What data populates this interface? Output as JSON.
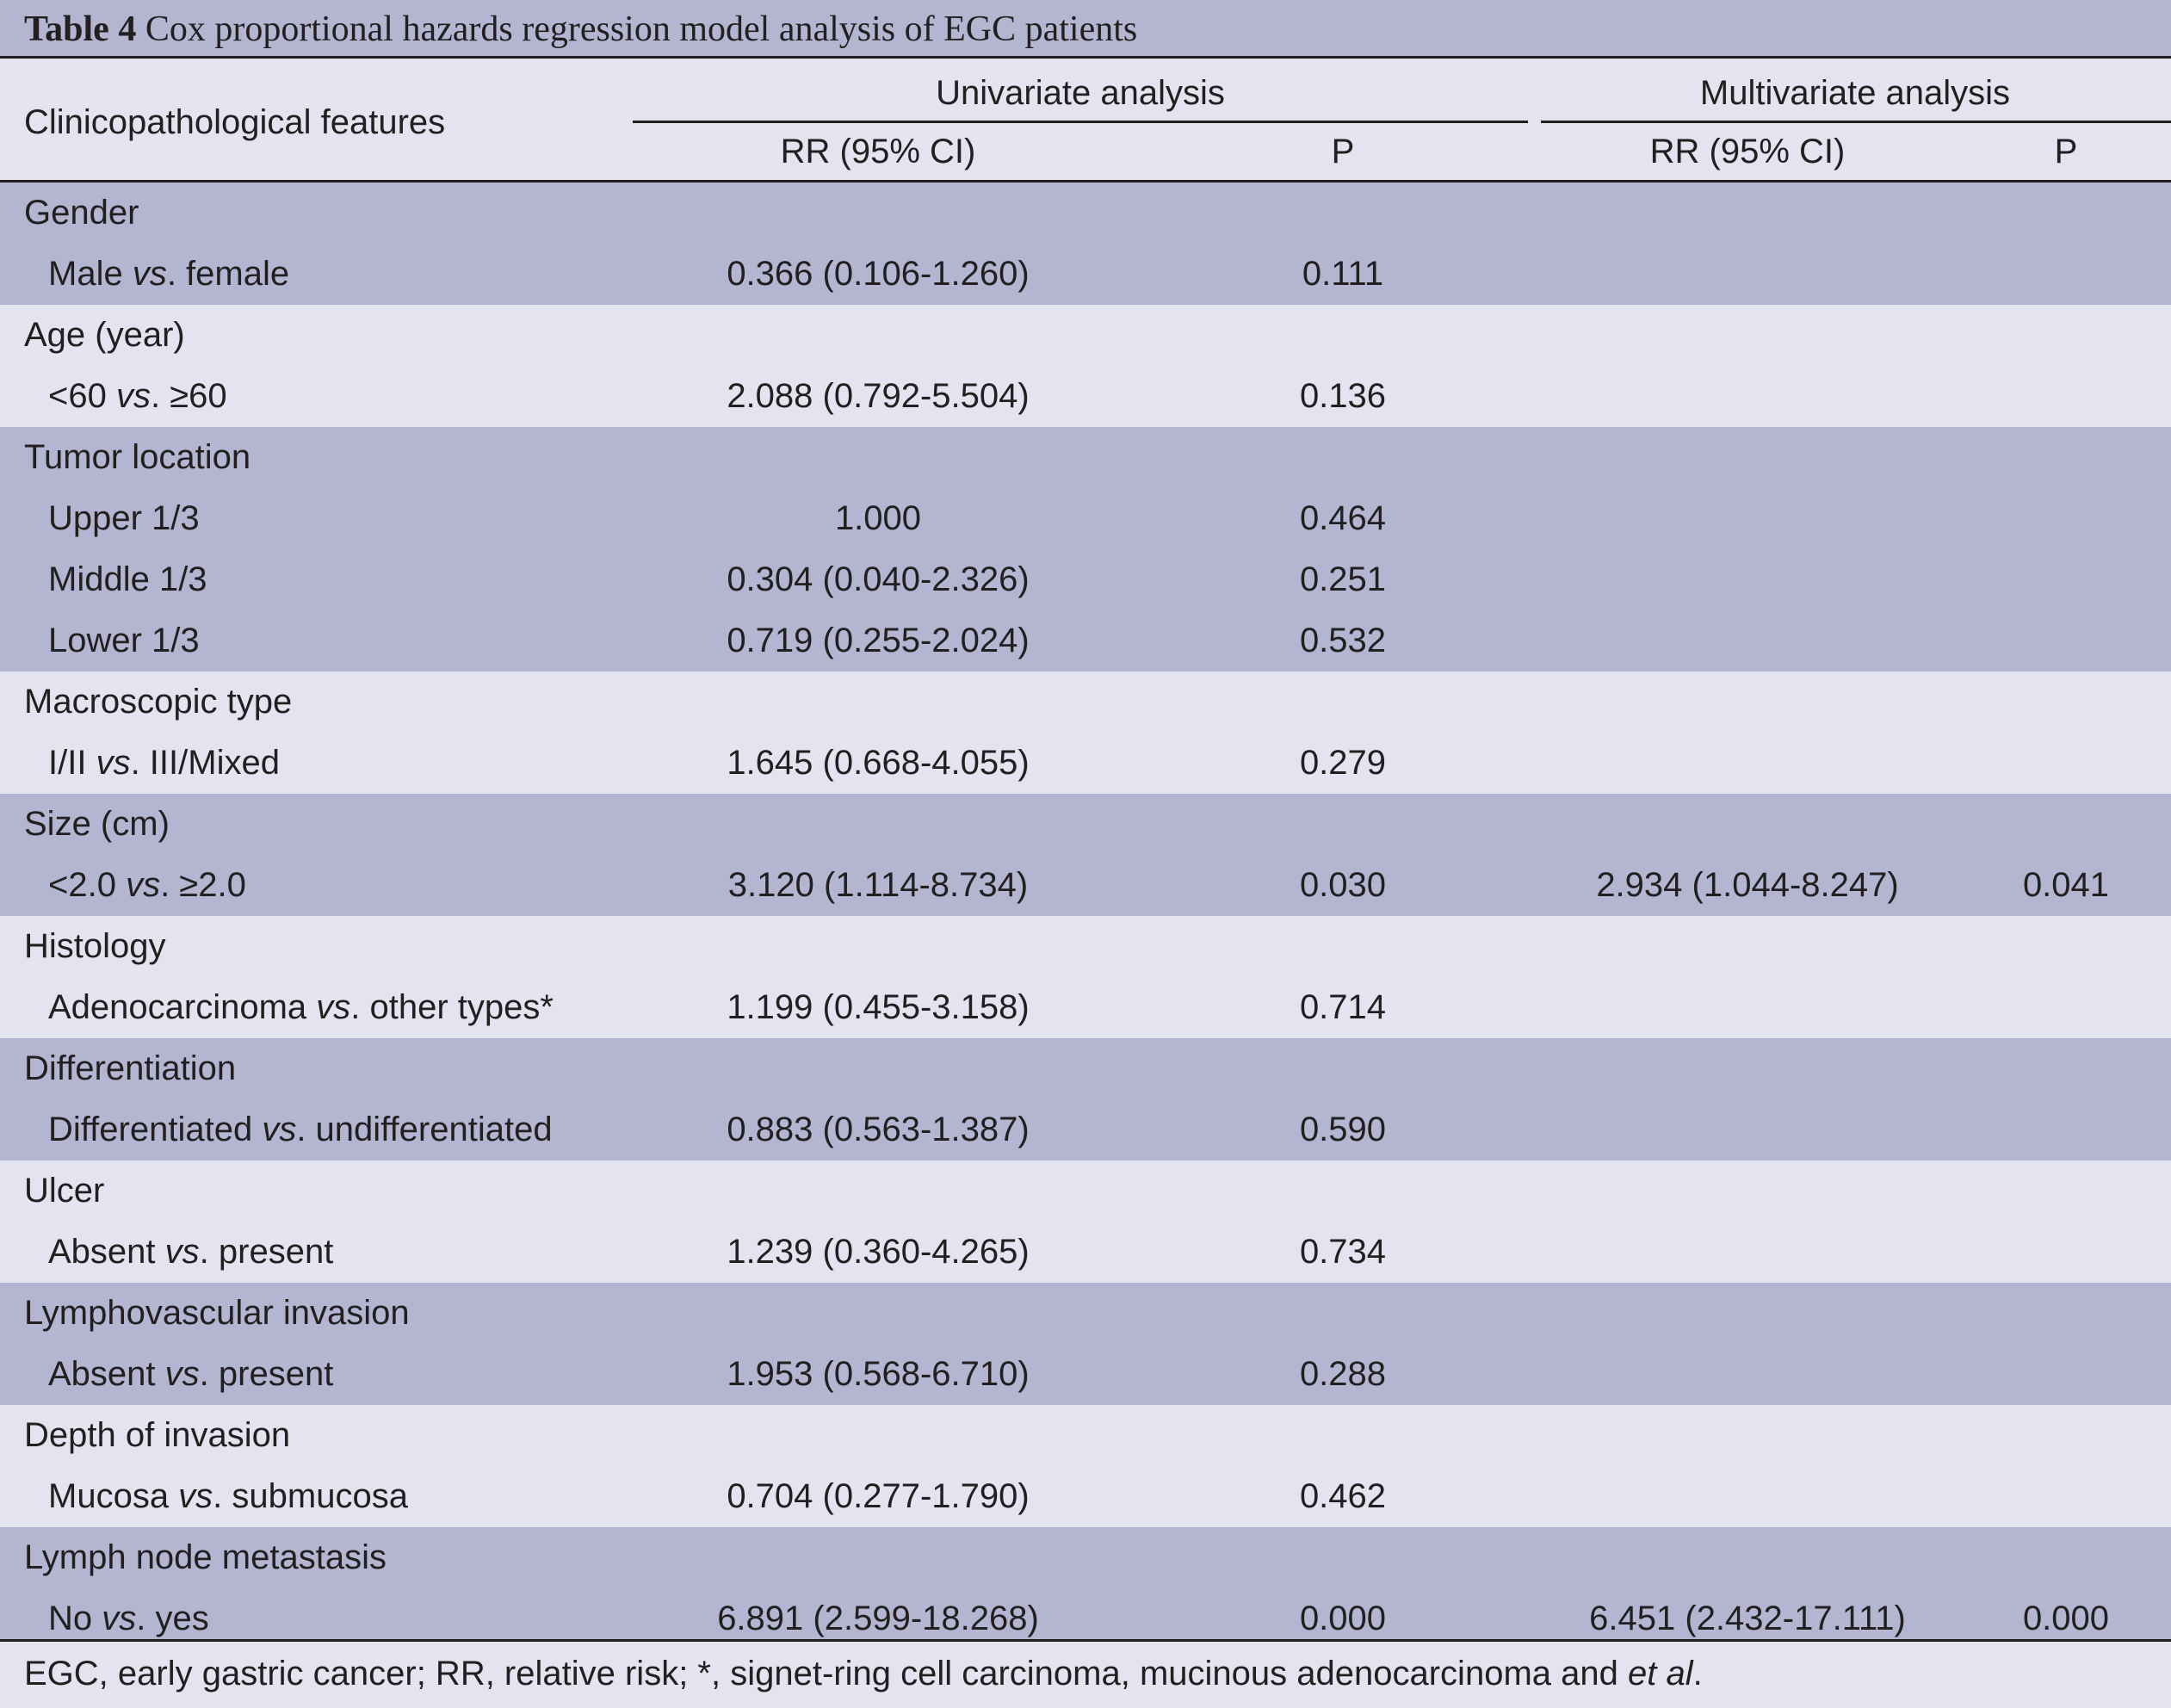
{
  "table": {
    "caption_label": "Table 4",
    "caption_text": "Cox proportional hazards regression model analysis of EGC patients",
    "header": {
      "feature_col": "Clinicopathological features",
      "univariate": "Univariate analysis",
      "multivariate": "Multivariate analysis",
      "rr_label": "RR (95% CI)",
      "p_label": "P"
    },
    "groups": [
      {
        "feature": "Gender",
        "rows": [
          {
            "pre": "Male ",
            "vs": "vs",
            "post": ". female",
            "urr": "0.366 (0.106-1.260)",
            "up": "0.111",
            "mrr": "",
            "mp": ""
          }
        ]
      },
      {
        "feature": "Age (year)",
        "rows": [
          {
            "pre": "<60 ",
            "vs": "vs",
            "post": ". ≥60",
            "urr": "2.088 (0.792-5.504)",
            "up": "0.136",
            "mrr": "",
            "mp": ""
          }
        ]
      },
      {
        "feature": "Tumor location",
        "rows": [
          {
            "pre": "Upper 1/3",
            "vs": "",
            "post": "",
            "urr": "1.000",
            "up": "0.464",
            "mrr": "",
            "mp": ""
          },
          {
            "pre": "Middle 1/3",
            "vs": "",
            "post": "",
            "urr": "0.304 (0.040-2.326)",
            "up": "0.251",
            "mrr": "",
            "mp": ""
          },
          {
            "pre": "Lower 1/3",
            "vs": "",
            "post": "",
            "urr": "0.719 (0.255-2.024)",
            "up": "0.532",
            "mrr": "",
            "mp": ""
          }
        ]
      },
      {
        "feature": "Macroscopic type",
        "rows": [
          {
            "pre": "I/II ",
            "vs": "vs",
            "post": ". III/Mixed",
            "urr": "1.645 (0.668-4.055)",
            "up": "0.279",
            "mrr": "",
            "mp": ""
          }
        ]
      },
      {
        "feature": "Size (cm)",
        "rows": [
          {
            "pre": "<2.0 ",
            "vs": "vs",
            "post": ". ≥2.0",
            "urr": "3.120 (1.114-8.734)",
            "up": "0.030",
            "mrr": "2.934 (1.044-8.247)",
            "mp": "0.041"
          }
        ]
      },
      {
        "feature": "Histology",
        "rows": [
          {
            "pre": "Adenocarcinoma ",
            "vs": "vs",
            "post": ". other types*",
            "urr": "1.199 (0.455-3.158)",
            "up": "0.714",
            "mrr": "",
            "mp": ""
          }
        ]
      },
      {
        "feature": "Differentiation",
        "rows": [
          {
            "pre": "Differentiated ",
            "vs": "vs",
            "post": ". undifferentiated",
            "urr": "0.883 (0.563-1.387)",
            "up": "0.590",
            "mrr": "",
            "mp": ""
          }
        ]
      },
      {
        "feature": "Ulcer",
        "rows": [
          {
            "pre": "Absent ",
            "vs": "vs",
            "post": ". present",
            "urr": "1.239 (0.360-4.265)",
            "up": "0.734",
            "mrr": "",
            "mp": ""
          }
        ]
      },
      {
        "feature": "Lymphovascular invasion",
        "rows": [
          {
            "pre": "Absent ",
            "vs": "vs",
            "post": ". present",
            "urr": "1.953 (0.568-6.710)",
            "up": "0.288",
            "mrr": "",
            "mp": ""
          }
        ]
      },
      {
        "feature": "Depth of invasion",
        "rows": [
          {
            "pre": "Mucosa ",
            "vs": "vs",
            "post": ". submucosa",
            "urr": "0.704 (0.277-1.790)",
            "up": "0.462",
            "mrr": "",
            "mp": ""
          }
        ]
      },
      {
        "feature": "Lymph node metastasis",
        "rows": [
          {
            "pre": "No ",
            "vs": "vs",
            "post": ". yes",
            "urr": "6.891 (2.599-18.268)",
            "up": "0.000",
            "mrr": "6.451 (2.432-17.111)",
            "mp": "0.000"
          }
        ]
      }
    ],
    "footnote": {
      "text": "EGC, early gastric cancer; RR, relative risk; *, signet-ring cell carcinoma, mucinous adenocarcinoma and ",
      "etal": "et al",
      "end": "."
    }
  },
  "colors": {
    "shade": "#b3b5d1",
    "plain": "#e3e4ef",
    "text": "#231f20"
  }
}
